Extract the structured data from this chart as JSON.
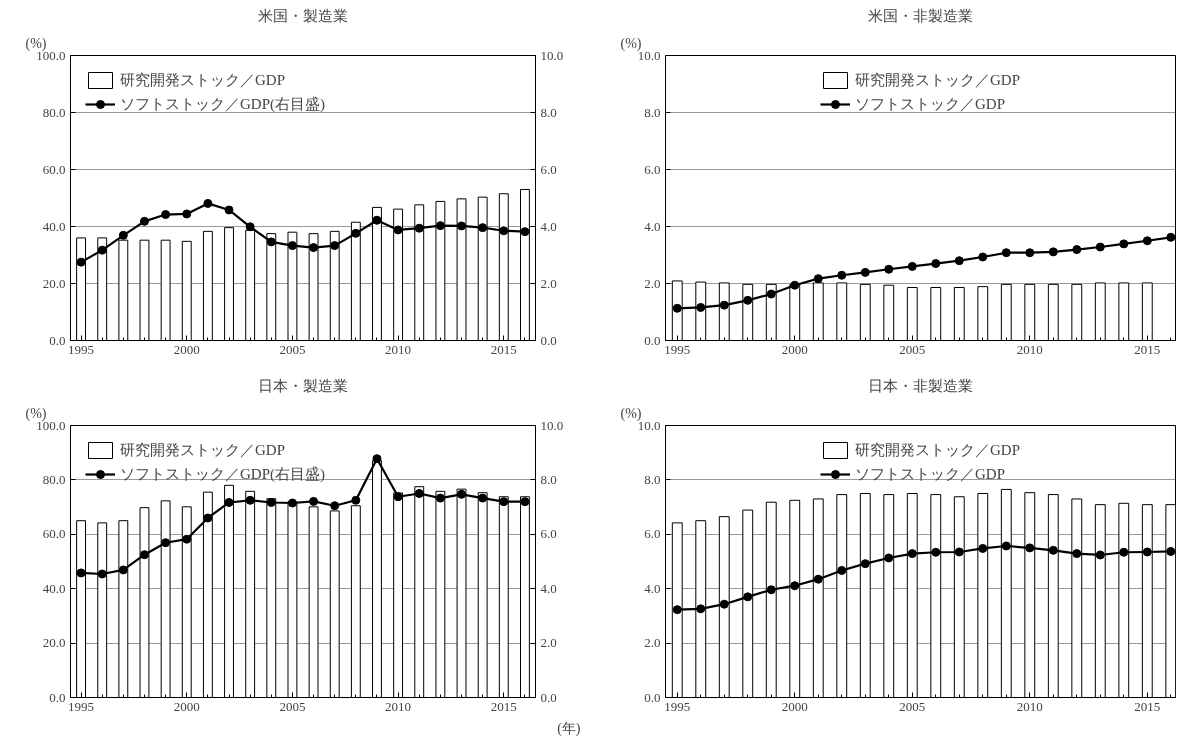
{
  "chart_data": [
    {
      "type": "bar",
      "title": "米国・製造業",
      "ylabel": "(%)",
      "x": [
        1995,
        1996,
        1997,
        1998,
        1999,
        2000,
        2001,
        2002,
        2003,
        2004,
        2005,
        2006,
        2007,
        2008,
        2009,
        2010,
        2011,
        2012,
        2013,
        2014,
        2015,
        2016
      ],
      "series": [
        {
          "name": "研究開発ストック／GDP",
          "color": "#ffffff",
          "values": [
            36,
            36,
            35.2,
            35.2,
            35.2,
            34.8,
            38.3,
            39.6,
            38.7,
            37.5,
            38,
            37.5,
            38.3,
            41.5,
            46.7,
            46.1,
            47.6,
            48.8,
            49.7,
            50.3,
            51.5,
            53
          ]
        },
        {
          "name": "ソフトストック／GDP(右目盛)",
          "type": "line",
          "axis": "y2",
          "color": "#000000",
          "values": [
            2.75,
            3.17,
            3.69,
            4.18,
            4.42,
            4.44,
            4.81,
            4.58,
            3.99,
            3.46,
            3.33,
            3.26,
            3.33,
            3.76,
            4.22,
            3.88,
            3.94,
            4.03,
            4.02,
            3.96,
            3.85,
            3.82
          ]
        }
      ],
      "xlim": [
        1994.5,
        2016.5
      ],
      "xticks": [
        1995,
        2000,
        2005,
        2010,
        2015
      ],
      "ylim": [
        0,
        100
      ],
      "yticks": [
        {
          "value": 0,
          "label": "0.0"
        },
        {
          "value": 20,
          "label": "20.0"
        },
        {
          "value": 40,
          "label": "40.0"
        },
        {
          "value": 60,
          "label": "60.0"
        },
        {
          "value": 80,
          "label": "80.0"
        },
        {
          "value": 100,
          "label": "100.0"
        }
      ],
      "y2lim": [
        0,
        10
      ],
      "y2ticks": [
        {
          "value": 0,
          "label": "0.0"
        },
        {
          "value": 2,
          "label": "2.0"
        },
        {
          "value": 4,
          "label": "4.0"
        },
        {
          "value": 6,
          "label": "6.0"
        },
        {
          "value": 8,
          "label": "8.0"
        },
        {
          "value": 10,
          "label": "10.0"
        }
      ],
      "grid": "y",
      "legend": "top left",
      "marker": "circle"
    },
    {
      "type": "bar",
      "title": "米国・非製造業",
      "ylabel": "(%)",
      "x": [
        1995,
        1996,
        1997,
        1998,
        1999,
        2000,
        2001,
        2002,
        2003,
        2004,
        2005,
        2006,
        2007,
        2008,
        2009,
        2010,
        2011,
        2012,
        2013,
        2014,
        2015,
        2016
      ],
      "series": [
        {
          "name": "研究開発ストック／GDP",
          "color": "#ffffff",
          "values": [
            2.09,
            2.05,
            2.02,
            1.97,
            1.97,
            1.96,
            2.02,
            2.02,
            1.97,
            1.94,
            1.86,
            1.86,
            1.86,
            1.89,
            1.97,
            1.97,
            1.97,
            1.97,
            2.02,
            2.02,
            2.02,
            null
          ]
        },
        {
          "name": "ソフトストック／GDP",
          "type": "line",
          "color": "#000000",
          "values": [
            1.13,
            1.16,
            1.24,
            1.41,
            1.63,
            1.94,
            2.17,
            2.29,
            2.39,
            2.5,
            2.6,
            2.7,
            2.8,
            2.93,
            3.08,
            3.08,
            3.11,
            3.19,
            3.28,
            3.39,
            3.5,
            3.62
          ]
        }
      ],
      "xlim": [
        1994.5,
        2016.2
      ],
      "xticks": [
        1995,
        2000,
        2005,
        2010,
        2015
      ],
      "ylim": [
        0,
        10
      ],
      "yticks": [
        {
          "value": 0,
          "label": "0.0"
        },
        {
          "value": 2,
          "label": "2.0"
        },
        {
          "value": 4,
          "label": "4.0"
        },
        {
          "value": 6,
          "label": "6.0"
        },
        {
          "value": 8,
          "label": "8.0"
        },
        {
          "value": 10,
          "label": "10.0"
        }
      ],
      "grid": "y",
      "legend": "top",
      "marker": "circle"
    },
    {
      "type": "bar",
      "title": "日本・製造業",
      "ylabel": "(%)",
      "xlabel": "(年)",
      "x": [
        1995,
        1996,
        1997,
        1998,
        1999,
        2000,
        2001,
        2002,
        2003,
        2004,
        2005,
        2006,
        2007,
        2008,
        2009,
        2010,
        2011,
        2012,
        2013,
        2014,
        2015,
        2016
      ],
      "series": [
        {
          "name": "研究開発ストック／GDP",
          "color": "#ffffff",
          "values": [
            65,
            64.2,
            65,
            69.8,
            72.3,
            70.1,
            75.5,
            78,
            75.8,
            73.1,
            72,
            70.1,
            68.6,
            70.5,
            87.1,
            75.2,
            77.5,
            75.8,
            76.6,
            75.3,
            73.8,
            73.8
          ]
        },
        {
          "name": "ソフトストック／GDP(右目盛)",
          "type": "line",
          "axis": "y2",
          "color": "#000000",
          "values": [
            4.58,
            4.54,
            4.69,
            5.25,
            5.69,
            5.82,
            6.6,
            7.17,
            7.25,
            7.17,
            7.15,
            7.21,
            7.05,
            7.25,
            8.78,
            7.38,
            7.5,
            7.33,
            7.47,
            7.33,
            7.2,
            7.2
          ]
        }
      ],
      "xlim": [
        1994.5,
        2016.5
      ],
      "xticks": [
        1995,
        2000,
        2005,
        2010,
        2015
      ],
      "ylim": [
        0,
        100
      ],
      "yticks": [
        {
          "value": 0,
          "label": "0.0"
        },
        {
          "value": 20,
          "label": "20.0"
        },
        {
          "value": 40,
          "label": "40.0"
        },
        {
          "value": 60,
          "label": "60.0"
        },
        {
          "value": 80,
          "label": "80.0"
        },
        {
          "value": 100,
          "label": "100.0"
        }
      ],
      "y2lim": [
        0,
        10
      ],
      "y2ticks": [
        {
          "value": 0,
          "label": "0.0"
        },
        {
          "value": 2,
          "label": "2.0"
        },
        {
          "value": 4,
          "label": "4.0"
        },
        {
          "value": 6,
          "label": "6.0"
        },
        {
          "value": 8,
          "label": "8.0"
        },
        {
          "value": 10,
          "label": "10.0"
        }
      ],
      "grid": "y",
      "legend": "top left",
      "marker": "circle"
    },
    {
      "type": "bar",
      "title": "日本・非製造業",
      "ylabel": "(%)",
      "x": [
        1995,
        1996,
        1997,
        1998,
        1999,
        2000,
        2001,
        2002,
        2003,
        2004,
        2005,
        2006,
        2007,
        2008,
        2009,
        2010,
        2011,
        2012,
        2013,
        2014,
        2015,
        2016
      ],
      "series": [
        {
          "name": "研究開発ストック／GDP",
          "color": "#ffffff",
          "values": [
            6.42,
            6.5,
            6.65,
            6.89,
            7.18,
            7.25,
            7.3,
            7.46,
            7.5,
            7.46,
            7.5,
            7.46,
            7.38,
            7.5,
            7.65,
            7.53,
            7.46,
            7.3,
            7.09,
            7.14,
            7.09,
            7.09
          ]
        },
        {
          "name": "ソフトストック／GDP",
          "type": "line",
          "color": "#000000",
          "values": [
            3.23,
            3.26,
            3.43,
            3.7,
            3.96,
            4.11,
            4.35,
            4.67,
            4.92,
            5.13,
            5.29,
            5.34,
            5.35,
            5.48,
            5.57,
            5.5,
            5.41,
            5.29,
            5.24,
            5.34,
            5.35,
            5.37
          ]
        }
      ],
      "xlim": [
        1994.5,
        2016.2
      ],
      "xticks": [
        1995,
        2000,
        2005,
        2010,
        2015
      ],
      "ylim": [
        0,
        10
      ],
      "yticks": [
        {
          "value": 0,
          "label": "0.0"
        },
        {
          "value": 2,
          "label": "2.0"
        },
        {
          "value": 4,
          "label": "4.0"
        },
        {
          "value": 6,
          "label": "6.0"
        },
        {
          "value": 8,
          "label": "8.0"
        },
        {
          "value": 10,
          "label": "10.0"
        }
      ],
      "grid": "y",
      "legend": "top",
      "marker": "circle"
    }
  ]
}
